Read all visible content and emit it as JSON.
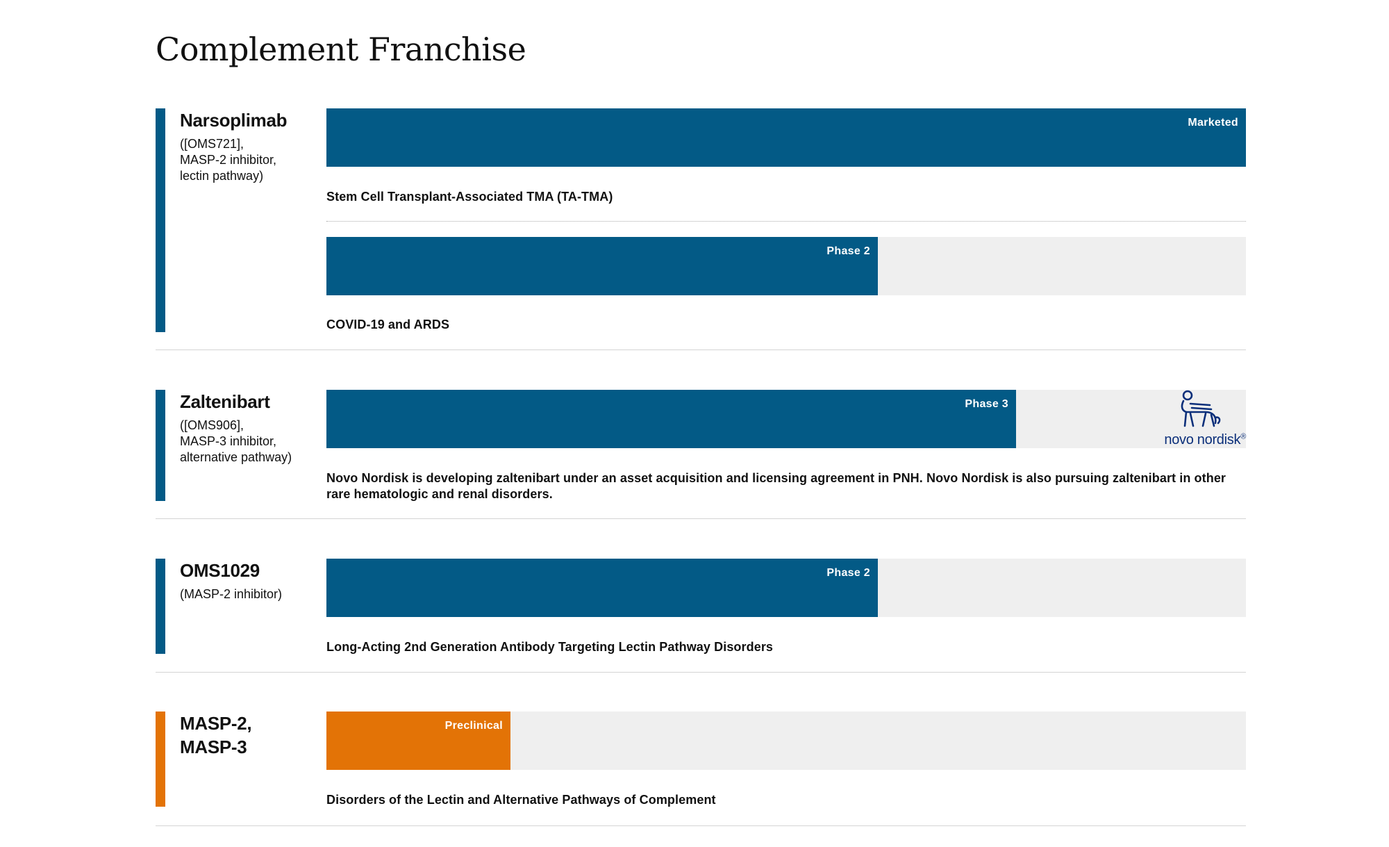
{
  "page": {
    "title": "Complement Franchise"
  },
  "colors": {
    "blue": "#035a86",
    "orange": "#e37306",
    "track": "#efefef",
    "navy": "#0b2f7a"
  },
  "chart_data": {
    "type": "bar",
    "orientation": "horizontal",
    "scale": [
      "Preclinical",
      "Phase 1",
      "Phase 2",
      "Phase 3",
      "Marketed"
    ],
    "programs": [
      {
        "name": "Narsoplimab",
        "description": "([OMS721],\nMASP-2 inhibitor,\nlectin pathway)",
        "color": "#035a86",
        "indications": [
          {
            "stage": "Marketed",
            "progress": 1.0,
            "text": "Stem Cell Transplant-Associated TMA (TA-TMA)"
          },
          {
            "stage": "Phase 2",
            "progress": 0.6,
            "text": "COVID-19 and ARDS"
          }
        ]
      },
      {
        "name": "Zaltenibart",
        "description": "([OMS906],\nMASP-3 inhibitor,\nalternative pathway)",
        "color": "#035a86",
        "partner": {
          "name": "novo nordisk",
          "icon": "novo-nordisk-bull-icon"
        },
        "indications": [
          {
            "stage": "Phase 3",
            "progress": 0.75,
            "text": "Novo Nordisk is developing zaltenibart under an asset acquisition and licensing agreement in PNH. Novo Nordisk is also pursuing zaltenibart in other rare hematologic and renal disorders."
          }
        ]
      },
      {
        "name": "OMS1029",
        "description": "(MASP-2 inhibitor)",
        "color": "#035a86",
        "indications": [
          {
            "stage": "Phase 2",
            "progress": 0.6,
            "text": "Long-Acting 2nd Generation Antibody Targeting Lectin Pathway Disorders"
          }
        ]
      },
      {
        "name": "MASP-2,\nMASP-3",
        "description": "",
        "color": "#e37306",
        "indications": [
          {
            "stage": "Preclinical",
            "progress": 0.2,
            "text": "Disorders of the Lectin and Alternative Pathways of Complement"
          }
        ]
      }
    ]
  }
}
